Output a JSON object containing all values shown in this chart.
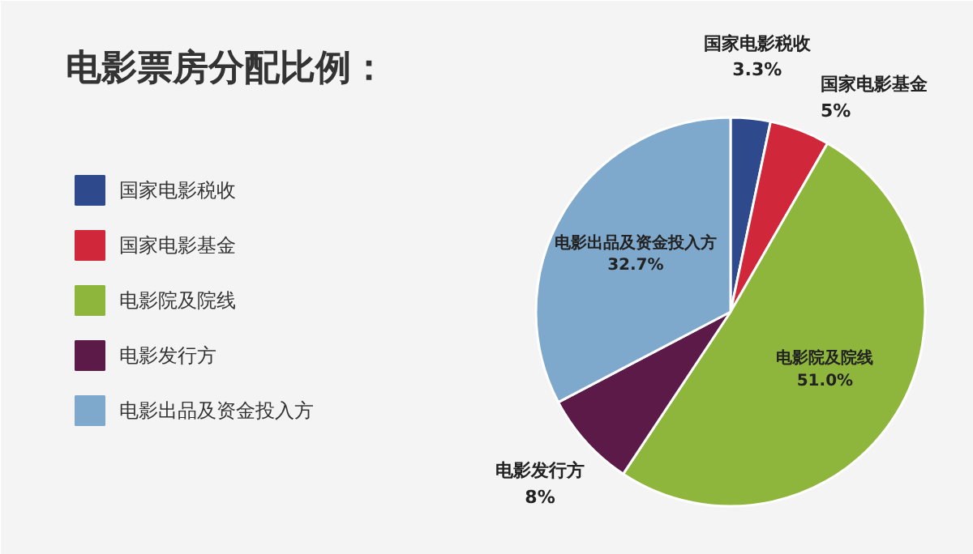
{
  "chart_data": {
    "type": "pie",
    "title": "电影票房分配比例：",
    "categories": [
      "国家电影税收",
      "国家电影基金",
      "电影院及院线",
      "电影发行方",
      "电影出品及资金投入方"
    ],
    "values": [
      3.3,
      5,
      51.0,
      8,
      32.7
    ],
    "colors": [
      "#2e4a8c",
      "#d0283a",
      "#8fb63c",
      "#5c1a48",
      "#7fa9cc"
    ],
    "value_labels": [
      "3.3%",
      "5%",
      "51.0%",
      "8%",
      "32.7%"
    ],
    "legend": "left"
  }
}
